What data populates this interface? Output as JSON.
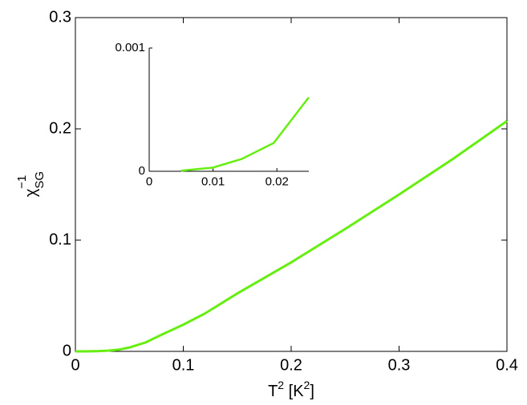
{
  "chart_data": [
    {
      "type": "line",
      "x_label": {
        "base": "T",
        "sup1": "2",
        "mid": " [K",
        "sup2": "2",
        "end": "]"
      },
      "y_label": {
        "base": "χ",
        "superscript": "−1",
        "subscript": "SG"
      },
      "x": [
        0,
        0.01,
        0.02,
        0.03,
        0.04,
        0.05,
        0.065,
        0.08,
        0.1,
        0.12,
        0.15,
        0.2,
        0.25,
        0.3,
        0.35,
        0.4
      ],
      "values": [
        0,
        0,
        0.0002,
        0.0006,
        0.0015,
        0.0035,
        0.008,
        0.015,
        0.024,
        0.034,
        0.052,
        0.08,
        0.11,
        0.141,
        0.173,
        0.207
      ],
      "color": "#66ee11",
      "xlim": [
        0,
        0.4
      ],
      "xticks": [
        0,
        0.1,
        0.2,
        0.3,
        0.4
      ],
      "ylim": [
        0,
        0.3
      ],
      "yticks": [
        0,
        0.1,
        0.2,
        0.3
      ]
    },
    {
      "type": "line",
      "x": [
        0.005,
        0.01,
        0.0145,
        0.0195,
        0.025
      ],
      "values": [
        5e-06,
        3e-05,
        0.0001,
        0.00023,
        0.0006
      ],
      "color": "#66ee11",
      "xlim": [
        0,
        0.025
      ],
      "xticks": [
        0,
        0.01,
        0.02
      ],
      "ylim": [
        0,
        0.001
      ],
      "yticks": [
        0,
        0.001
      ]
    }
  ]
}
